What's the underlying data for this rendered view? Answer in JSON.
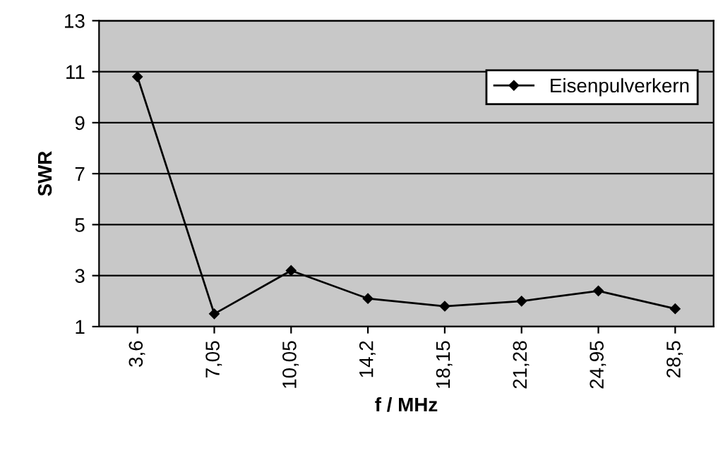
{
  "chart_data": {
    "type": "line",
    "xlabel": "f / MHz",
    "ylabel": "SWR",
    "categories": [
      "3,6",
      "7,05",
      "10,05",
      "14,2",
      "18,15",
      "21,28",
      "24,95",
      "28,5"
    ],
    "series": [
      {
        "name": "Eisenpulverkern",
        "color": "#000000",
        "values": [
          10.8,
          1.5,
          3.2,
          2.1,
          1.8,
          2.0,
          2.4,
          1.7
        ]
      }
    ],
    "ylim": [
      1,
      13
    ],
    "yticks": [
      1,
      3,
      5,
      7,
      9,
      11,
      13
    ],
    "grid": "y",
    "legend": "top right",
    "marker": "diamond",
    "line_style": "solid"
  }
}
